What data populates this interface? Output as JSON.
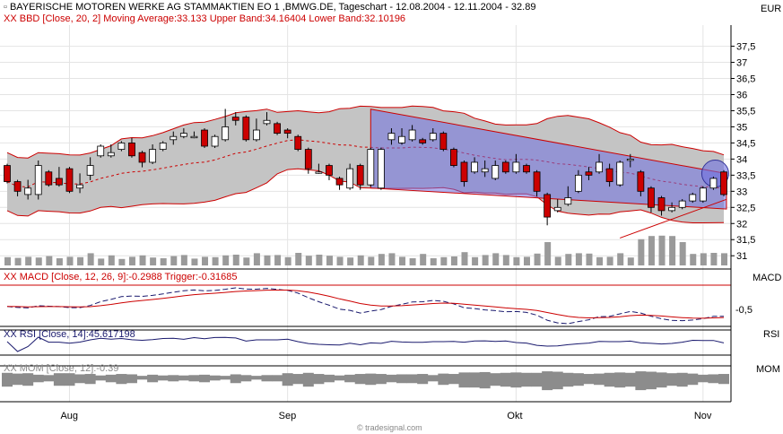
{
  "chart_data": {
    "type": "candlestick",
    "title": "BAYERISCHE MOTOREN WERKE AG STAMMAKTIEN EO 1 ,BMWG.DE, Tageschart - 12.08.2004 - 12.11.2004 - 32.89",
    "currency_label": "EUR",
    "watermark": "© tradesignal.com",
    "bollinger_label": "XX BBD [Close, 20, 2] Moving Average:33.133 Upper Band:34.16404 Lower Band:32.10196",
    "macd_label": "XX MACD [Close, 12, 26, 9]:-0.2988 Trigger:-0.31685",
    "rsi_label": "XX RSI [Close, 14]:45.617198",
    "mom_label": "XX MOM [Close, 12]:-0.39",
    "right_labels": {
      "macd": "MACD",
      "rsi": "RSI",
      "mom": "MOM"
    },
    "price_axis": {
      "ticks": [
        "37,5",
        "37",
        "36,5",
        "36",
        "35,5",
        "35",
        "34,5",
        "34",
        "33,5",
        "33",
        "32,5",
        "32",
        "31,5",
        "31"
      ],
      "tick_values": [
        37.5,
        37,
        36.5,
        36,
        35.5,
        35,
        34.5,
        34,
        33.5,
        33,
        32.5,
        32,
        31.5,
        31
      ],
      "ylim": [
        30.7,
        38.1
      ]
    },
    "macd_axis": {
      "ticks": [
        "-0,5"
      ]
    },
    "x_labels": [
      "Aug",
      "Sep",
      "Okt",
      "Nov"
    ],
    "x_label_index": [
      6,
      27,
      49,
      67
    ],
    "candles": [
      [
        33.8,
        33.7,
        33.3
      ],
      [
        33.3,
        33.3,
        32.9
      ],
      [
        32.9,
        33.3,
        32.8
      ],
      [
        32.9,
        33.9,
        32.8
      ],
      [
        33.6,
        33.3,
        33.6
      ],
      [
        33.4,
        33.7,
        33.3
      ],
      [
        33.7,
        33.4,
        33.1
      ],
      [
        33.1,
        33.5,
        33.0
      ],
      [
        33.5,
        34.0,
        33.4
      ],
      [
        34.1,
        34.3,
        34.2
      ],
      [
        34.1,
        34.4,
        34.3
      ],
      [
        34.3,
        34.5,
        34.4
      ],
      [
        34.5,
        34.6,
        34.2
      ],
      [
        34.2,
        33.9,
        33.8
      ],
      [
        33.9,
        34.4,
        34.2
      ],
      [
        34.3,
        34.5,
        34.4
      ],
      [
        34.6,
        34.8,
        34.5
      ],
      [
        34.7,
        34.9,
        34.7
      ],
      [
        34.7,
        34.8,
        34.7
      ],
      [
        34.9,
        34.4,
        34.4
      ],
      [
        34.4,
        34.7,
        34.4
      ],
      [
        34.6,
        35.5,
        34.9
      ],
      [
        35.3,
        35.4,
        35.1
      ],
      [
        35.3,
        34.6,
        34.7
      ],
      [
        34.6,
        35.2,
        34.8
      ],
      [
        35.1,
        35.4,
        35.1
      ],
      [
        35.1,
        34.8,
        34.8
      ],
      [
        34.9,
        34.8,
        34.7
      ],
      [
        34.7,
        34.4,
        34.3
      ],
      [
        34.3,
        34.0,
        33.6
      ],
      [
        33.6,
        33.8,
        33.6
      ],
      [
        33.8,
        33.6,
        33.4
      ],
      [
        33.4,
        33.1,
        33.1
      ],
      [
        33.1,
        33.8,
        33.2
      ],
      [
        33.8,
        33.2,
        33.1
      ],
      [
        33.2,
        34.2,
        33.2
      ],
      [
        33.1,
        34.3,
        34.2
      ],
      [
        34.6,
        34.9,
        34.5
      ],
      [
        34.5,
        34.9,
        34.6
      ],
      [
        34.6,
        35.0,
        34.6
      ],
      [
        34.6,
        34.6,
        34.5
      ],
      [
        34.6,
        34.9,
        34.8
      ],
      [
        34.8,
        34.4,
        34.3
      ],
      [
        34.3,
        34.0,
        33.9
      ],
      [
        33.9,
        33.5,
        33.2
      ],
      [
        33.6,
        34.0,
        33.8
      ],
      [
        33.6,
        33.9,
        33.5
      ],
      [
        33.4,
        33.9,
        33.8
      ],
      [
        33.9,
        33.7,
        33.6
      ],
      [
        33.6,
        34.1,
        33.8
      ],
      [
        33.8,
        33.6,
        33.6
      ],
      [
        33.6,
        33.4,
        32.9
      ],
      [
        32.9,
        32.4,
        32.0
      ],
      [
        32.4,
        32.7,
        32.4
      ],
      [
        32.6,
        33.1,
        33.0
      ],
      [
        33.0,
        33.6,
        33.6
      ],
      [
        33.6,
        33.7,
        33.4
      ],
      [
        33.6,
        34.1,
        33.6
      ],
      [
        33.7,
        33.8,
        33.2
      ],
      [
        33.2,
        33.9,
        33.8
      ],
      [
        34.0,
        34.1,
        33.8
      ],
      [
        33.6,
        33.1,
        32.9
      ],
      [
        33.1,
        32.9,
        32.4
      ],
      [
        32.8,
        32.6,
        32.3
      ],
      [
        32.4,
        32.6,
        32.4
      ],
      [
        32.5,
        32.6,
        32.6
      ],
      [
        32.7,
        32.8,
        32.7
      ],
      [
        32.7,
        33.1,
        33.1
      ],
      [
        33.1,
        33.4,
        33.5
      ],
      [
        33.6,
        32.7,
        33.0
      ]
    ],
    "candle_fields": [
      "open",
      "high",
      "low"
    ],
    "closes": [
      33.3,
      33.0,
      33.1,
      33.8,
      33.2,
      33.2,
      33.0,
      33.2,
      33.8,
      34.4,
      34.2,
      34.5,
      34.1,
      33.9,
      34.3,
      34.5,
      34.7,
      34.8,
      34.7,
      34.4,
      34.7,
      35.0,
      35.2,
      34.6,
      34.9,
      35.2,
      34.8,
      34.8,
      34.3,
      33.7,
      33.6,
      33.5,
      33.2,
      33.7,
      33.2,
      34.3,
      34.3,
      34.8,
      34.7,
      34.9,
      34.5,
      34.8,
      34.3,
      33.8,
      33.3,
      33.9,
      33.7,
      33.8,
      33.6,
      33.9,
      33.6,
      33.0,
      32.2,
      32.5,
      32.8,
      33.5,
      33.5,
      33.9,
      33.3,
      33.9,
      34.0,
      33.0,
      32.5,
      32.4,
      32.5,
      32.7,
      32.9,
      33.1,
      33.4,
      32.9
    ],
    "volume": [
      0.23,
      0.21,
      0.24,
      0.22,
      0.26,
      0.2,
      0.24,
      0.23,
      0.34,
      0.19,
      0.28,
      0.18,
      0.24,
      0.28,
      0.22,
      0.2,
      0.26,
      0.29,
      0.19,
      0.24,
      0.23,
      0.28,
      0.3,
      0.22,
      0.34,
      0.28,
      0.29,
      0.23,
      0.35,
      0.27,
      0.3,
      0.27,
      0.24,
      0.22,
      0.28,
      0.24,
      0.32,
      0.34,
      0.24,
      0.2,
      0.32,
      0.2,
      0.23,
      0.25,
      0.37,
      0.23,
      0.29,
      0.34,
      0.29,
      0.23,
      0.24,
      0.33,
      0.65,
      0.24,
      0.32,
      0.34,
      0.33,
      0.23,
      0.24,
      0.34,
      0.22,
      0.73,
      0.82,
      0.83,
      0.82,
      0.65,
      0.32,
      0.34,
      0.35,
      0.34
    ],
    "momentum": [
      0.55,
      0.45,
      0.5,
      0.3,
      0.25,
      0.5,
      0.5,
      0.35,
      0.4,
      0.2,
      0.3,
      0.4,
      0.35,
      0.15,
      0.3,
      0.2,
      0.25,
      0.2,
      0.25,
      0.3,
      0.2,
      0.15,
      0.35,
      0.25,
      0.15,
      0.25,
      0.25,
      0.5,
      0.4,
      0.55,
      0.4,
      0.3,
      0.2,
      0.3,
      0.4,
      0.45,
      0.4,
      0.3,
      0.35,
      0.35,
      0.4,
      0.25,
      0.45,
      0.4,
      0.6,
      0.6,
      0.65,
      0.5,
      0.55,
      0.6,
      0.55,
      0.55,
      0.75,
      0.7,
      0.55,
      0.5,
      0.4,
      0.45,
      0.55,
      0.6,
      0.55,
      0.75,
      0.7,
      0.6,
      0.5,
      0.55,
      0.45,
      0.3,
      0.35,
      0.4
    ],
    "colors": {
      "band_fill": "#c4c4c4",
      "band_line": "#cc0000",
      "up": "#ffffff",
      "down": "#cc0000",
      "channel": "#6f6fe0",
      "volume": "#9a9a9a",
      "macd": "#1a1a6e",
      "trigger": "#cc0000",
      "rsi": "#1a1a6e",
      "mom": "#8c8c8c"
    }
  }
}
